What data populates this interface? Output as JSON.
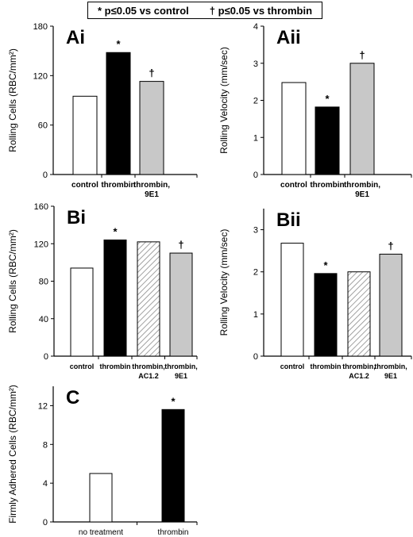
{
  "legend": {
    "left": "* p≤0.05 vs control",
    "right": "† p≤0.05 vs thrombin"
  },
  "colors": {
    "control": "#ffffff",
    "thrombin": "#000000",
    "thrombin_9E1": "#c8c8c8",
    "thrombin_AC1_2": "#ffffff",
    "hatch": "#888888",
    "outline": "#000000"
  },
  "chart_data": [
    {
      "id": "Ai",
      "type": "bar",
      "panel_label": "Ai",
      "ylabel": "Rolling Cells (RBC/mm²)",
      "ylim": [
        0,
        180
      ],
      "yticks": [
        0,
        60,
        120,
        180
      ],
      "categories": [
        [
          "control"
        ],
        [
          "thrombin"
        ],
        [
          "thrombin,",
          "9E1"
        ]
      ],
      "values": [
        95,
        148,
        113
      ],
      "fills": [
        "control",
        "thrombin",
        "thrombin_9E1"
      ],
      "annotations": [
        "",
        "*",
        "†"
      ]
    },
    {
      "id": "Aii",
      "type": "bar",
      "panel_label": "Aii",
      "ylabel": "Rolling Velocity (mm/sec)",
      "ylim": [
        0,
        4
      ],
      "yticks": [
        0,
        1,
        2,
        3,
        4
      ],
      "categories": [
        [
          "control"
        ],
        [
          "thrombin"
        ],
        [
          "thrombin,",
          "9E1"
        ]
      ],
      "values": [
        2.48,
        1.82,
        3.0
      ],
      "fills": [
        "control",
        "thrombin",
        "thrombin_9E1"
      ],
      "annotations": [
        "",
        "*",
        "†"
      ]
    },
    {
      "id": "Bi",
      "type": "bar",
      "panel_label": "Bi",
      "ylabel": "Rolling Cells (RBC/mm²)",
      "ylim": [
        0,
        160
      ],
      "yticks": [
        0,
        40,
        80,
        120,
        160
      ],
      "categories": [
        [
          "control"
        ],
        [
          "thrombin"
        ],
        [
          "thrombin,",
          "AC1.2"
        ],
        [
          "thrombin,",
          "9E1"
        ]
      ],
      "values": [
        94,
        124,
        122,
        110
      ],
      "fills": [
        "control",
        "thrombin",
        "hatch",
        "thrombin_9E1"
      ],
      "annotations": [
        "",
        "*",
        "",
        "†"
      ]
    },
    {
      "id": "Bii",
      "type": "bar",
      "panel_label": "Bii",
      "ylabel": "Rolling Velocity (mm/sec)",
      "ylim": [
        0,
        3.5
      ],
      "yticks": [
        0,
        1,
        2,
        3
      ],
      "categories": [
        [
          "control"
        ],
        [
          "thrombin"
        ],
        [
          "thrombin,",
          "AC1.2"
        ],
        [
          "thrombin,",
          "9E1"
        ]
      ],
      "values": [
        2.68,
        1.96,
        2.0,
        2.42
      ],
      "fills": [
        "control",
        "thrombin",
        "hatch",
        "thrombin_9E1"
      ],
      "annotations": [
        "",
        "*",
        "",
        "†"
      ]
    },
    {
      "id": "C",
      "type": "bar",
      "panel_label": "C",
      "ylabel": "Firmly Adhered Cells (RBC/mm²)",
      "ylim": [
        0,
        14
      ],
      "yticks": [
        0,
        4,
        8,
        12
      ],
      "categories": [
        [
          "no treatment"
        ],
        [
          "thrombin"
        ]
      ],
      "values": [
        5.0,
        11.6
      ],
      "fills": [
        "control",
        "thrombin"
      ],
      "annotations": [
        "",
        "*"
      ]
    }
  ]
}
